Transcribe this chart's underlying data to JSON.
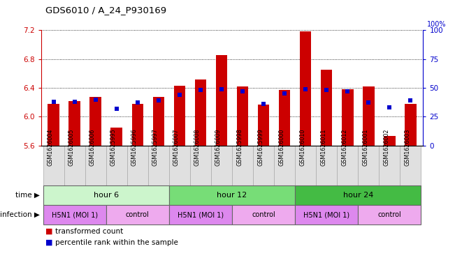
{
  "title": "GDS6010 / A_24_P930169",
  "samples": [
    "GSM1626004",
    "GSM1626005",
    "GSM1626006",
    "GSM1625995",
    "GSM1625996",
    "GSM1625997",
    "GSM1626007",
    "GSM1626008",
    "GSM1626009",
    "GSM1625998",
    "GSM1625999",
    "GSM1626000",
    "GSM1626010",
    "GSM1626011",
    "GSM1626012",
    "GSM1626001",
    "GSM1626002",
    "GSM1626003"
  ],
  "bar_values": [
    6.18,
    6.22,
    6.27,
    5.85,
    6.18,
    6.27,
    6.43,
    6.52,
    6.85,
    6.42,
    6.17,
    6.37,
    7.18,
    6.65,
    6.38,
    6.42,
    5.73,
    6.18
  ],
  "percentile_values": [
    38,
    38,
    40,
    32,
    37,
    39,
    44,
    48,
    49,
    47,
    36,
    45,
    49,
    48,
    47,
    37,
    33,
    39
  ],
  "ylim_left": [
    5.6,
    7.2
  ],
  "ylim_right": [
    0,
    100
  ],
  "yticks_left": [
    5.6,
    6.0,
    6.4,
    6.8,
    7.2
  ],
  "yticks_right": [
    0,
    25,
    50,
    75,
    100
  ],
  "bar_color": "#cc0000",
  "percentile_color": "#0000cc",
  "time_colors": [
    "#ccf5cc",
    "#77dd77",
    "#44bb44"
  ],
  "time_groups": [
    {
      "label": "hour 6",
      "start": 0,
      "end": 6
    },
    {
      "label": "hour 12",
      "start": 6,
      "end": 12
    },
    {
      "label": "hour 24",
      "start": 12,
      "end": 18
    }
  ],
  "inf_groups": [
    {
      "label": "H5N1 (MOI 1)",
      "start": 0,
      "end": 3,
      "color": "#dd88ee"
    },
    {
      "label": "control",
      "start": 3,
      "end": 6,
      "color": "#eeaaee"
    },
    {
      "label": "H5N1 (MOI 1)",
      "start": 6,
      "end": 9,
      "color": "#dd88ee"
    },
    {
      "label": "control",
      "start": 9,
      "end": 12,
      "color": "#eeaaee"
    },
    {
      "label": "H5N1 (MOI 1)",
      "start": 12,
      "end": 15,
      "color": "#dd88ee"
    },
    {
      "label": "control",
      "start": 15,
      "end": 18,
      "color": "#eeaaee"
    }
  ],
  "ylabel_left_color": "#cc0000",
  "ylabel_right_color": "#0000cc",
  "bar_baseline": 5.6,
  "bar_width": 0.55
}
